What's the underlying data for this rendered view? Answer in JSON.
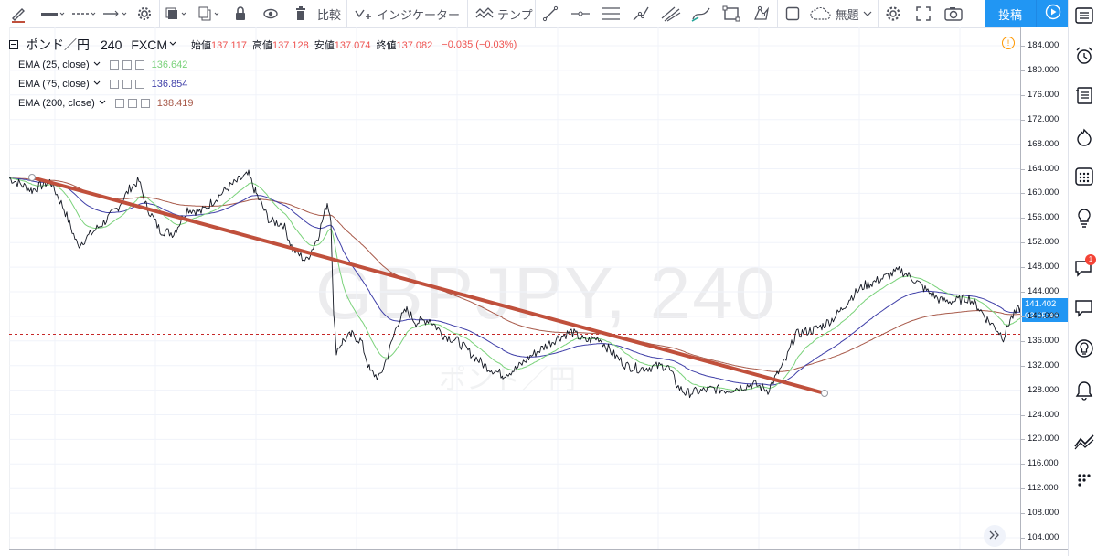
{
  "toolbar": {
    "compare_label": "比較",
    "indicators_label": "インジケーター",
    "template_label": "テンプ",
    "layout_label": "無題",
    "post_label": "投稿"
  },
  "legend": {
    "symbol": "ポンド／円",
    "interval": "240",
    "exchange": "FXCM",
    "ohlc": [
      {
        "label": "始値",
        "value": "137.117"
      },
      {
        "label": "高値",
        "value": "137.128"
      },
      {
        "label": "安値",
        "value": "137.074"
      },
      {
        "label": "終値",
        "value": "137.082"
      }
    ],
    "change": "−0.035 (−0.03%)",
    "indicators": [
      {
        "label": "EMA (25, close)",
        "value": "136.642",
        "color": "#7ad27a"
      },
      {
        "label": "EMA (75, close)",
        "value": "136.854",
        "color": "#3f3fa8"
      },
      {
        "label": "EMA (200, close)",
        "value": "138.419",
        "color": "#a85a4a"
      }
    ]
  },
  "watermark": {
    "main": "GBPJPY, 240",
    "sub": "ポンド／円"
  },
  "price_axis": {
    "ticks": [
      "184.000",
      "180.000",
      "176.000",
      "172.000",
      "168.000",
      "164.000",
      "160.000",
      "156.000",
      "152.000",
      "148.000",
      "144.000",
      "140.000",
      "136.000",
      "132.000",
      "128.000",
      "124.000",
      "120.000",
      "116.000",
      "112.000",
      "108.000",
      "104.000"
    ],
    "last_price": "141.402",
    "countdown": "03:55:46"
  },
  "notifications": {
    "badge": "1"
  },
  "colors": {
    "accent": "#2196f3",
    "trendline": "#c0503c",
    "price": "#131722",
    "ema25": "#7ad27a",
    "ema75": "#3f3fa8",
    "ema200": "#a85a4a",
    "current_line": "#c62828"
  },
  "icons": {
    "toolbar": [
      "brush-icon",
      "line-style-icon",
      "line-dash-icon",
      "line-end-icon",
      "gear-icon",
      "fill-icon",
      "clone-icon",
      "lock-icon",
      "eye-icon",
      "trash-icon"
    ],
    "sidebar": [
      "watchlist-icon",
      "alarm-clock-icon",
      "news-icon",
      "hotlist-icon",
      "calendar-icon",
      "ideas-icon",
      "chat-icon",
      "messages-icon",
      "streams-icon",
      "notification-bell-icon",
      "chart-trend-icon",
      "more-dots-icon"
    ]
  }
}
